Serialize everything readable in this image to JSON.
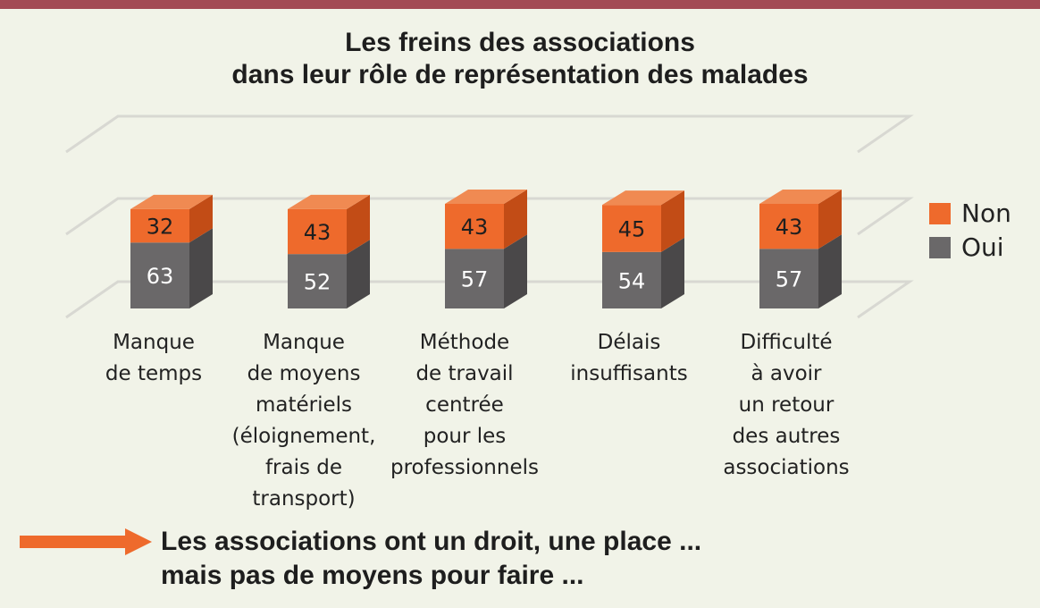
{
  "title_line1": "Les freins des associations",
  "title_line2": "dans leur rôle de représentation des malades",
  "legend": [
    {
      "label": "Non",
      "color": "#ee6a2c"
    },
    {
      "label": "Oui",
      "color": "#6a6869"
    }
  ],
  "conclusion": {
    "line1": "Les associations ont un droit, une place ...",
    "line2": "mais pas de moyens pour faire ..."
  },
  "chart_data": {
    "type": "bar",
    "stacked": true,
    "three_d": true,
    "categories": [
      "Manque\nde temps",
      "Manque\nde moyens\nmatériels\n(éloignement,\nfrais de\ntransport)",
      "Méthode\nde travail\ncentrée\npour les\nprofessionnels",
      "Délais\ninsuffisants",
      "Difficulté\nà avoir\nun retour\ndes autres\nassociations"
    ],
    "series": [
      {
        "name": "Oui",
        "values": [
          63,
          52,
          57,
          54,
          57
        ],
        "color": "#6a6869"
      },
      {
        "name": "Non",
        "values": [
          32,
          43,
          43,
          45,
          43
        ],
        "color": "#ee6a2c"
      }
    ],
    "legend_position": "right",
    "grid": true,
    "data_labels": true
  }
}
